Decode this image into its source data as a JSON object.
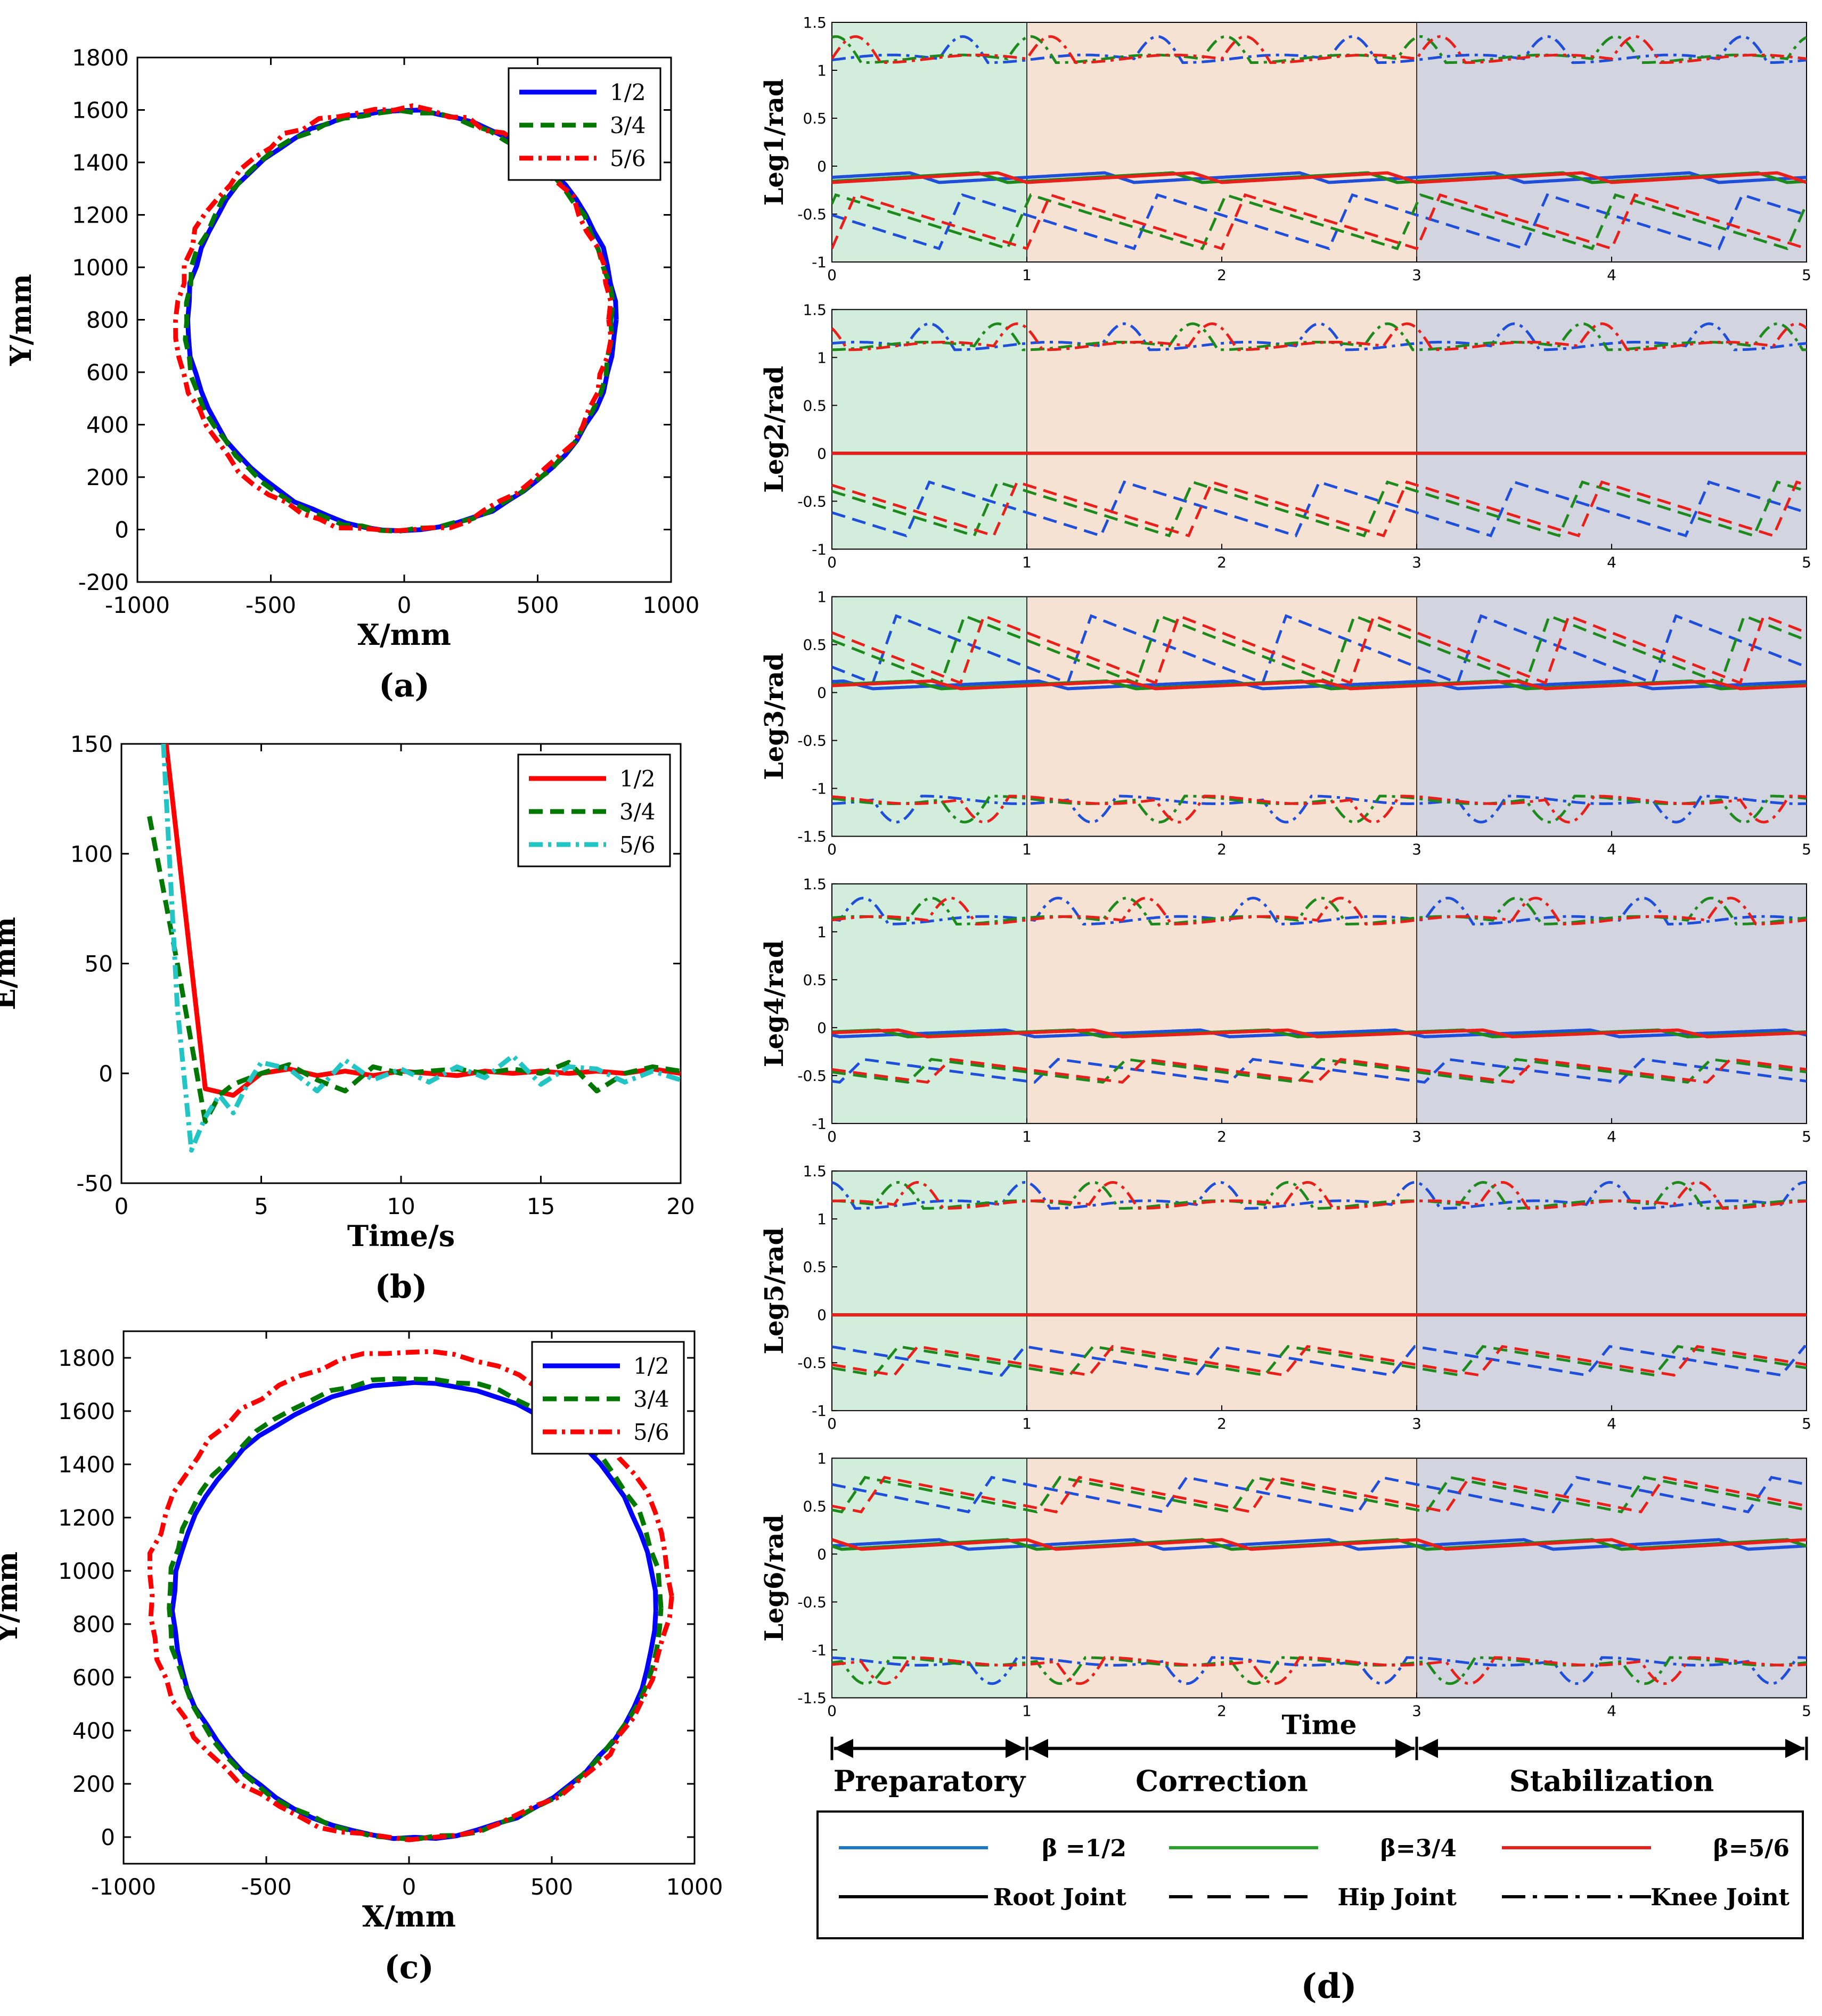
{
  "chart_data": [
    {
      "id": "a",
      "type": "line",
      "panel_label": "(a)",
      "xlabel": "X/mm",
      "ylabel": "Y/mm",
      "xlim": [
        -1000,
        1000
      ],
      "ylim": [
        -200,
        1800
      ],
      "xticks": [
        -1000,
        -500,
        0,
        500,
        1000
      ],
      "yticks": [
        -200,
        0,
        200,
        400,
        600,
        800,
        1000,
        1200,
        1400,
        1600,
        1800
      ],
      "legend_position": "top-right",
      "series": [
        {
          "name": "1/2",
          "color": "#0000ff",
          "style": "solid",
          "shape": "circle",
          "cx": -10,
          "cy": 800,
          "r": 800,
          "noise": 6
        },
        {
          "name": "3/4",
          "color": "#007700",
          "style": "dashed",
          "shape": "circle",
          "cx": -20,
          "cy": 795,
          "r": 800,
          "noise": 8
        },
        {
          "name": "5/6",
          "color": "#ff0000",
          "style": "dashdot",
          "shape": "circle",
          "cx": -40,
          "cy": 800,
          "r": 810,
          "noise": 14
        }
      ]
    },
    {
      "id": "b",
      "type": "line",
      "panel_label": "(b)",
      "xlabel": "Time/s",
      "ylabel": "E/mm",
      "xlim": [
        0,
        20
      ],
      "ylim": [
        -50,
        150
      ],
      "xticks": [
        0,
        5,
        10,
        15,
        20
      ],
      "yticks": [
        -50,
        0,
        50,
        100,
        150
      ],
      "legend_position": "top-right",
      "series": [
        {
          "name": "1/2",
          "color": "#ff0000",
          "style": "solid",
          "x": [
            1.6,
            3,
            4,
            5,
            6,
            7,
            8,
            9,
            10,
            11,
            12,
            13,
            14,
            15,
            16,
            17,
            18,
            19,
            20
          ],
          "y": [
            150,
            -7,
            -10,
            0,
            2,
            -1,
            1,
            -1,
            1,
            0,
            -1,
            1,
            0,
            1,
            0,
            1,
            0,
            2,
            0
          ]
        },
        {
          "name": "3/4",
          "color": "#007700",
          "style": "dashed",
          "x": [
            1,
            2,
            3,
            3.5,
            4,
            5,
            6,
            7,
            8,
            9,
            10,
            11,
            12,
            13,
            14,
            15,
            16,
            17,
            18,
            19,
            20
          ],
          "y": [
            117,
            50,
            -22,
            -10,
            -5,
            0,
            4,
            -3,
            -8,
            3,
            0,
            1,
            2,
            0,
            2,
            0,
            5,
            -8,
            0,
            3,
            1
          ]
        },
        {
          "name": "5/6",
          "color": "#22c4c4",
          "style": "dashdot",
          "x": [
            1.5,
            2,
            2.5,
            3,
            3.5,
            4,
            4.5,
            5,
            6,
            7,
            8,
            9,
            10,
            11,
            12,
            13,
            14,
            15,
            16,
            17,
            18,
            19,
            20
          ],
          "y": [
            150,
            30,
            -35,
            -20,
            -10,
            -18,
            -5,
            5,
            2,
            -8,
            6,
            -3,
            2,
            -4,
            3,
            -2,
            8,
            -5,
            3,
            2,
            -4,
            1,
            -3
          ]
        }
      ]
    },
    {
      "id": "c",
      "type": "line",
      "panel_label": "(c)",
      "xlabel": "X/mm",
      "ylabel": "Y/mm",
      "xlim": [
        -1000,
        1000
      ],
      "ylim": [
        -100,
        1900
      ],
      "xticks": [
        -1000,
        -500,
        0,
        500,
        1000
      ],
      "yticks": [
        0,
        200,
        400,
        600,
        800,
        1000,
        1200,
        1400,
        1600,
        1800
      ],
      "legend_position": "top-right",
      "series": [
        {
          "name": "1/2",
          "color": "#0000ff",
          "style": "solid",
          "shape": "ellipse",
          "cx": 20,
          "cy": 850,
          "rx": 845,
          "ry": 855,
          "noise": 5
        },
        {
          "name": "3/4",
          "color": "#007700",
          "style": "dashed",
          "shape": "ellipse",
          "cx": 20,
          "cy": 860,
          "rx": 860,
          "ry": 865,
          "noise": 7
        },
        {
          "name": "5/6",
          "color": "#ff0000",
          "style": "dashdot",
          "shape": "ellipse",
          "cx": 0,
          "cy": 905,
          "rx": 910,
          "ry": 915,
          "noise": 12
        }
      ]
    },
    {
      "id": "d",
      "type": "line",
      "panel_label": "(d)",
      "xlabel": "Time",
      "xlim": [
        0,
        5
      ],
      "xticks": [
        0,
        1,
        2,
        3,
        4,
        5
      ],
      "phases": [
        {
          "label": "Preparatory",
          "start": 0,
          "end": 1,
          "color": "#d2eddc"
        },
        {
          "label": "Correction",
          "start": 1,
          "end": 3,
          "color": "#f5e2d2"
        },
        {
          "label": "Stabilization",
          "start": 3,
          "end": 5,
          "color": "#d2d5e0"
        }
      ],
      "subplots": [
        {
          "ylabel": "Leg1/rad",
          "ylim": [
            -1,
            1.5
          ],
          "yticks": [
            -1,
            -0.5,
            0,
            0.5,
            1,
            1.5
          ],
          "knee_mean": 1.12,
          "root_base": -0.12,
          "root_amp": 0.1,
          "root_flat": false,
          "hip_base": -0.58,
          "hip_amp": 0.28
        },
        {
          "ylabel": "Leg2/rad",
          "ylim": [
            -1,
            1.5
          ],
          "yticks": [
            -1,
            -0.5,
            0,
            0.5,
            1,
            1.5
          ],
          "knee_mean": 1.12,
          "root_base": 0,
          "root_amp": 0,
          "root_flat": true,
          "hip_base": -0.58,
          "hip_amp": 0.28
        },
        {
          "ylabel": "Leg3/rad",
          "ylim": [
            -1.5,
            1
          ],
          "yticks": [
            -1.5,
            -1,
            -0.5,
            0,
            0.5,
            1
          ],
          "knee_mean": -1.12,
          "root_base": 0.08,
          "root_amp": 0.08,
          "root_flat": false,
          "hip_base": 0.45,
          "hip_amp": 0.35
        },
        {
          "ylabel": "Leg4/rad",
          "ylim": [
            -1,
            1.5
          ],
          "yticks": [
            -1,
            -0.5,
            0,
            0.5,
            1,
            1.5
          ],
          "knee_mean": 1.12,
          "root_base": -0.06,
          "root_amp": 0.07,
          "root_flat": false,
          "hip_base": -0.45,
          "hip_amp": 0.12
        },
        {
          "ylabel": "Leg5/rad",
          "ylim": [
            -1,
            1.5
          ],
          "yticks": [
            -1,
            -0.5,
            0,
            0.5,
            1,
            1.5
          ],
          "knee_mean": 1.15,
          "root_base": 0,
          "root_amp": 0,
          "root_flat": true,
          "hip_base": -0.48,
          "hip_amp": 0.15
        },
        {
          "ylabel": "Leg6/rad",
          "ylim": [
            -1.5,
            1
          ],
          "yticks": [
            -1.5,
            -1,
            -0.5,
            0,
            0.5,
            1
          ],
          "knee_mean": -1.12,
          "root_base": 0.1,
          "root_amp": 0.1,
          "root_flat": false,
          "hip_base": 0.62,
          "hip_amp": 0.18
        }
      ],
      "beta_series": [
        {
          "name": "1/2",
          "color": "#1f4fd8",
          "phase_offset": 0.45
        },
        {
          "name": "3/4",
          "color": "#1e8a1e",
          "phase_offset": 0.1
        },
        {
          "name": "5/6",
          "color": "#e8201c",
          "phase_offset": 0.0
        }
      ],
      "legend": {
        "beta_labels": [
          "β =1/2",
          "β=3/4",
          "β=5/6"
        ],
        "beta_colors": [
          "#1f77c4",
          "#2ca02c",
          "#e8201c"
        ],
        "joint_labels": [
          "Root Joint",
          "Hip Joint",
          "Knee Joint"
        ]
      }
    }
  ]
}
